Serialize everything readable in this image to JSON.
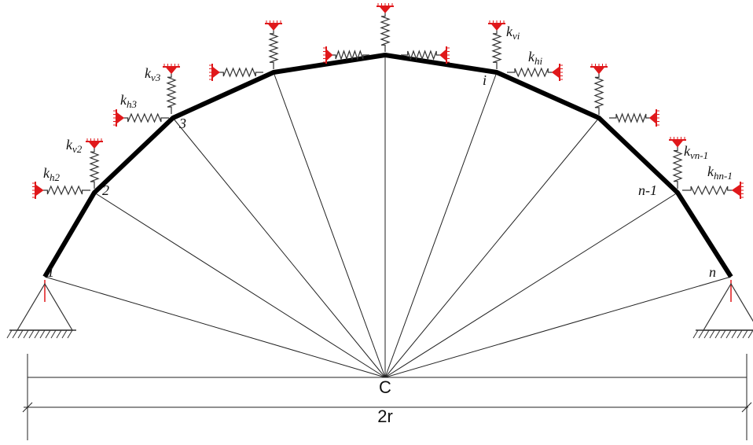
{
  "node_labels": [
    "1",
    "2",
    "3",
    "i",
    "n-1",
    "n"
  ],
  "spring_labels": [
    {
      "symbol": "k",
      "subscript": "h2"
    },
    {
      "symbol": "k",
      "subscript": "v2"
    },
    {
      "symbol": "k",
      "subscript": "h3"
    },
    {
      "symbol": "k",
      "subscript": "v3"
    },
    {
      "symbol": "k",
      "subscript": "vi"
    },
    {
      "symbol": "k",
      "subscript": "hi"
    },
    {
      "symbol": "k",
      "subscript": "vn-1"
    },
    {
      "symbol": "k",
      "subscript": "hn-1"
    }
  ],
  "center_label": "C",
  "span_label": "2r"
}
